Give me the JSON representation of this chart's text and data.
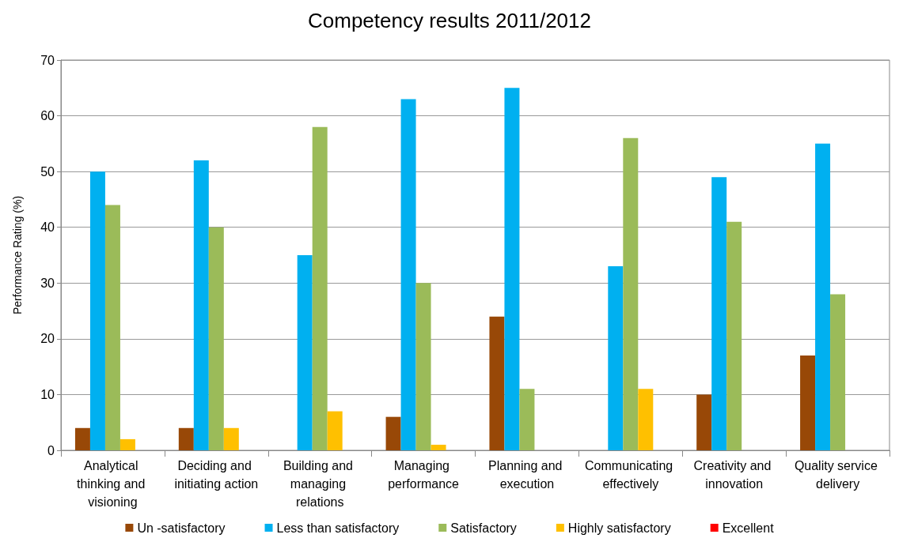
{
  "chart_data": {
    "type": "bar",
    "title": "Competency results 2011/2012",
    "ylabel": "Performance Rating (%)",
    "categories": [
      "Analytical thinking and visioning",
      "Deciding and initiating action",
      "Building and managing relations",
      "Managing performance",
      "Planning and execution",
      "Communicating effectively",
      "Creativity and innovation",
      "Quality service delivery"
    ],
    "series": [
      {
        "name": "Un -satisfactory",
        "color": "#984807",
        "values": [
          4,
          4,
          0,
          6,
          24,
          0,
          10,
          17
        ]
      },
      {
        "name": "Less than satisfactory",
        "color": "#00b0f0",
        "values": [
          50,
          52,
          35,
          63,
          65,
          33,
          49,
          55
        ]
      },
      {
        "name": "Satisfactory",
        "color": "#9bbb59",
        "values": [
          44,
          40,
          58,
          30,
          11,
          56,
          41,
          28
        ]
      },
      {
        "name": "Highly satisfactory",
        "color": "#ffc000",
        "values": [
          2,
          4,
          7,
          1,
          0,
          11,
          0,
          0
        ]
      },
      {
        "name": "Excellent",
        "color": "#ff0000",
        "values": [
          0,
          0,
          0,
          0,
          0,
          0,
          0,
          0
        ]
      }
    ],
    "ylim": [
      0,
      70
    ],
    "yticks": [
      0,
      10,
      20,
      30,
      40,
      50,
      60,
      70
    ],
    "grid": "y",
    "legend": "bottom"
  }
}
